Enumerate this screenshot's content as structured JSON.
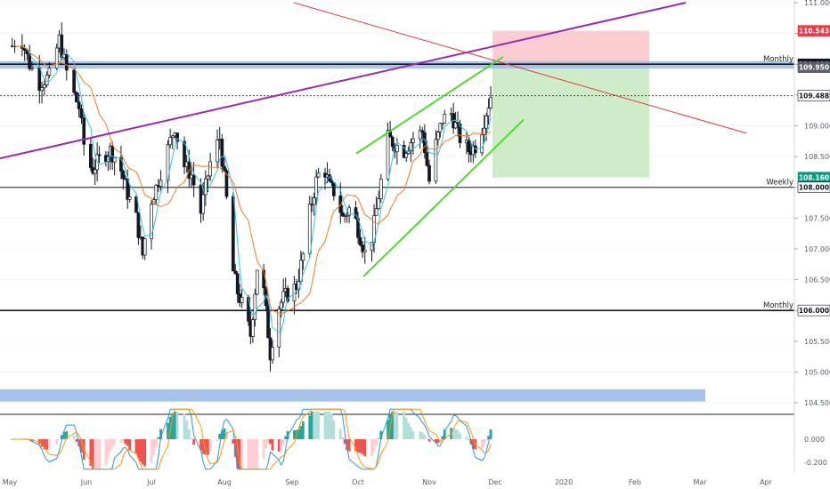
{
  "chart_data": {
    "type": "candlestick",
    "y_ticks": [
      "111.000",
      "110.500",
      "110.000",
      "109.500",
      "109.000",
      "108.500",
      "108.000",
      "107.500",
      "107.000",
      "106.500",
      "106.000",
      "105.500",
      "105.000",
      "104.500"
    ],
    "x_ticks": [
      "May",
      "Jun",
      "Jul",
      "Aug",
      "Sep",
      "Oct",
      "Nov",
      "Dec",
      "2020",
      "Feb",
      "Mar",
      "Apr"
    ],
    "ylim": [
      104.35,
      111.0
    ],
    "levels": [
      {
        "price": 110.0,
        "label": "Monthly"
      },
      {
        "price": 108.0,
        "label": "Weekly"
      },
      {
        "price": 106.0,
        "label": "Monthly"
      }
    ],
    "price_badges": [
      {
        "text": "110.543",
        "price": 110.543,
        "bg": "#f23645",
        "fg": "#ffffff"
      },
      {
        "text": "110.000",
        "price": 110.0,
        "bg": "#131722",
        "fg": "#ffffff"
      },
      {
        "text": "109.950",
        "price": 109.95,
        "bg": "#5d606b",
        "fg": "#ffffff"
      },
      {
        "text": "109.488",
        "price": 109.488,
        "bg": "#ffffff",
        "fg": "#131722"
      },
      {
        "text": "108.160",
        "price": 108.16,
        "bg": "#089981",
        "fg": "#ffffff"
      },
      {
        "text": "108.000",
        "price": 108.0,
        "bg": "#ffffff",
        "fg": "#131722"
      },
      {
        "text": "106.000",
        "price": 106.0,
        "bg": "#ffffff",
        "fg": "#131722"
      }
    ],
    "position": {
      "entry": 109.95,
      "stop": 110.543,
      "target": 108.16
    },
    "indicator_ticks": [
      "0.000",
      "-0.200"
    ],
    "colors": {
      "up_candle": "#ffffff",
      "down_candle": "#131722",
      "fast_ma": "#2ec4e8",
      "slow_ma": "#f57c1f",
      "trendline_purple": "#9c27b0",
      "trendline_red": "#e53935",
      "channel_green": "#4cdc2a",
      "stop_zone": "#f9c4c8",
      "target_zone": "#c7e9c0",
      "zone_blue": "#9dbbe8",
      "hist_up_strong": "#26a69a",
      "hist_up_weak": "#b2dfdb",
      "hist_down_strong": "#ef5350",
      "hist_down_weak": "#ffcdd2"
    }
  }
}
